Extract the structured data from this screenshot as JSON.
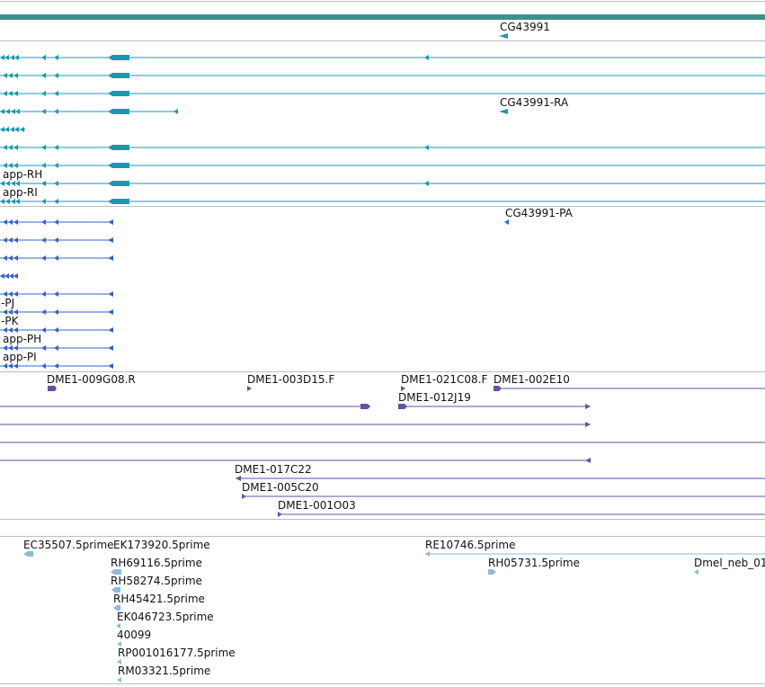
{
  "colors": {
    "track_bar": "#3d8f8c",
    "divider": "#bdbdbd",
    "transcript": "#1999b0",
    "protein": "#3264c6",
    "clone": "#6a4ea6",
    "est": "#8bbcda"
  },
  "tracks": {
    "gene": {
      "labels": [
        "CG43991"
      ]
    },
    "transcripts": {
      "labels": [
        "CG43991-RA",
        "app-RH",
        "app-RI"
      ]
    },
    "proteins": {
      "labels": [
        "CG43991-PA",
        "-PJ",
        "-PK",
        "app-PH",
        "app-PI"
      ]
    },
    "clones": {
      "labels": [
        "DME1-009G08.R",
        "DME1-003D15.F",
        "DME1-021C08.F",
        "DME1-002E10",
        "DME1-012J19",
        "DME1-017C22",
        "DME1-005C20",
        "DME1-001O03"
      ]
    },
    "ests": {
      "labels": [
        "EC35507.5prime",
        "EK173920.5prime",
        "RE10746.5prime",
        "RH69116.5prime",
        "RH05731.5prime",
        "Dmel_neb_01",
        "RH58274.5prime",
        "RH45421.5prime",
        "EK046723.5prime",
        "40099",
        "RP001016177.5prime",
        "RM03321.5prime"
      ]
    }
  }
}
